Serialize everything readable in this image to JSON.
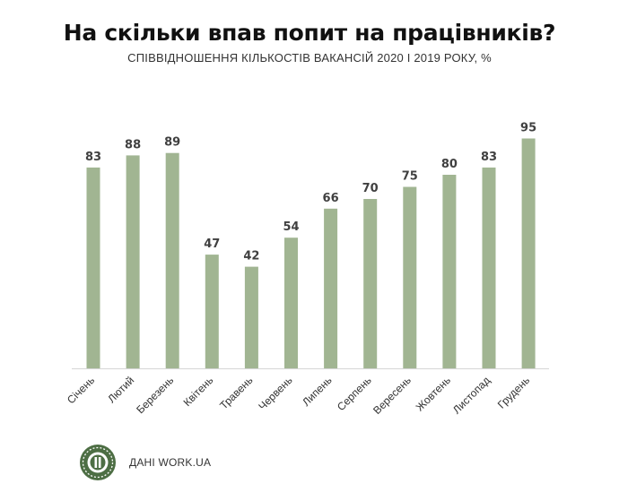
{
  "chart_data": {
    "type": "bar",
    "title": "На скільки впав попит на працівників?",
    "subtitle": "СПІВВІДНОШЕННЯ КІЛЬКОСТІВ ВАКАНСІЙ 2020 І 2019 РОКУ, %",
    "categories": [
      "Січень",
      "Лютий",
      "Березень",
      "Квітень",
      "Травень",
      "Червень",
      "Липень",
      "Серпень",
      "Вересень",
      "Жовтень",
      "Листопад",
      "Грудень"
    ],
    "values": [
      83,
      88,
      89,
      47,
      42,
      54,
      66,
      70,
      75,
      80,
      83,
      95
    ],
    "ylim": [
      0,
      100
    ],
    "grid": false,
    "bar_color": "#a1b592",
    "label_color": "#404040"
  },
  "footer": {
    "source": "ДАНІ WORK.UA",
    "logo_color": "#4d6e44"
  }
}
